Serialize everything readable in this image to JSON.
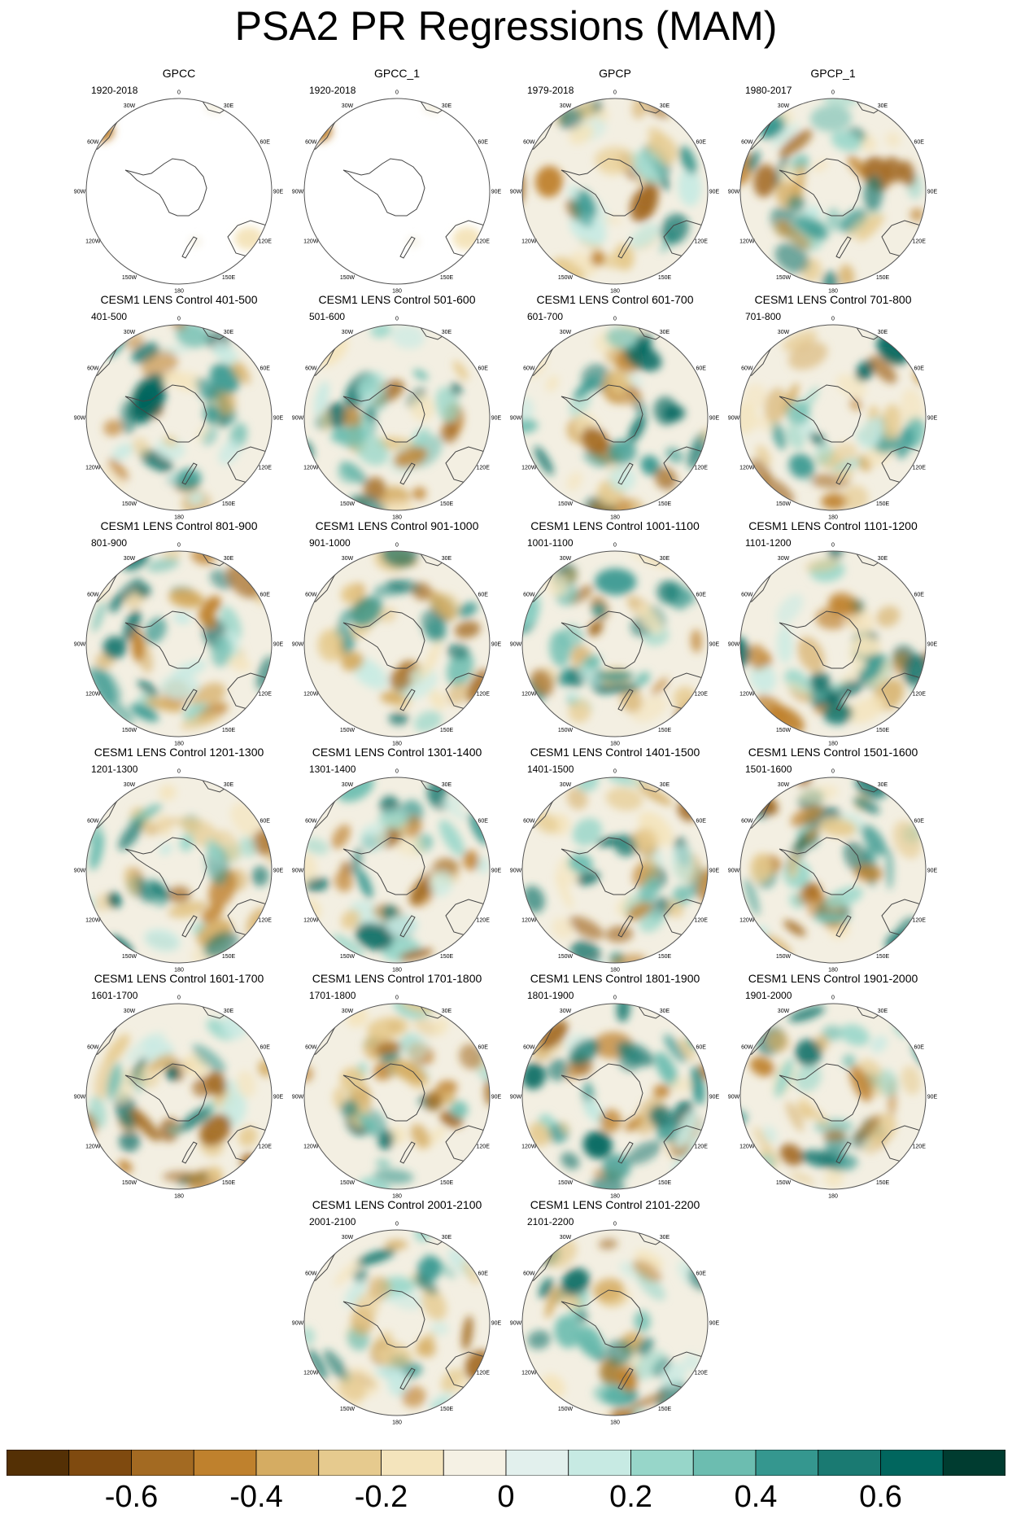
{
  "title": "PSA2 PR Regressions (MAM)",
  "panels": [
    {
      "id": "gpcc",
      "title": "GPCC",
      "period": "1920-2018",
      "coverage": "land"
    },
    {
      "id": "gpcc_1",
      "title": "GPCC_1",
      "period": "1920-2018",
      "coverage": "land"
    },
    {
      "id": "gpcp",
      "title": "GPCP",
      "period": "1979-2018",
      "coverage": "full"
    },
    {
      "id": "gpcp_1",
      "title": "GPCP_1",
      "period": "1980-2017",
      "coverage": "full"
    },
    {
      "id": "c401",
      "title": "CESM1 LENS Control 401-500",
      "period": "401-500",
      "coverage": "full"
    },
    {
      "id": "c501",
      "title": "CESM1 LENS Control 501-600",
      "period": "501-600",
      "coverage": "full"
    },
    {
      "id": "c601",
      "title": "CESM1 LENS Control 601-700",
      "period": "601-700",
      "coverage": "full"
    },
    {
      "id": "c701",
      "title": "CESM1 LENS Control 701-800",
      "period": "701-800",
      "coverage": "full"
    },
    {
      "id": "c801",
      "title": "CESM1 LENS Control 801-900",
      "period": "801-900",
      "coverage": "full"
    },
    {
      "id": "c901",
      "title": "CESM1 LENS Control 901-1000",
      "period": "901-1000",
      "coverage": "full"
    },
    {
      "id": "c1001",
      "title": "CESM1 LENS Control 1001-1100",
      "period": "1001-1100",
      "coverage": "full"
    },
    {
      "id": "c1101",
      "title": "CESM1 LENS Control 1101-1200",
      "period": "1101-1200",
      "coverage": "full"
    },
    {
      "id": "c1201",
      "title": "CESM1 LENS Control 1201-1300",
      "period": "1201-1300",
      "coverage": "full"
    },
    {
      "id": "c1301",
      "title": "CESM1 LENS Control 1301-1400",
      "period": "1301-1400",
      "coverage": "full"
    },
    {
      "id": "c1401",
      "title": "CESM1 LENS Control 1401-1500",
      "period": "1401-1500",
      "coverage": "full"
    },
    {
      "id": "c1501",
      "title": "CESM1 LENS Control 1501-1600",
      "period": "1501-1600",
      "coverage": "full"
    },
    {
      "id": "c1601",
      "title": "CESM1 LENS Control 1601-1700",
      "period": "1601-1700",
      "coverage": "full"
    },
    {
      "id": "c1701",
      "title": "CESM1 LENS Control 1701-1800",
      "period": "1701-1800",
      "coverage": "full"
    },
    {
      "id": "c1801",
      "title": "CESM1 LENS Control 1801-1900",
      "period": "1801-1900",
      "coverage": "full"
    },
    {
      "id": "c1901",
      "title": "CESM1 LENS Control 1901-2000",
      "period": "1901-2000",
      "coverage": "full"
    },
    {
      "id": "c2001",
      "title": "CESM1 LENS Control 2001-2100",
      "period": "2001-2100",
      "coverage": "full"
    },
    {
      "id": "c2101",
      "title": "CESM1 LENS Control 2101-2200",
      "period": "2101-2200",
      "coverage": "full"
    }
  ],
  "longitude_labels": [
    "0",
    "30E",
    "60E",
    "90E",
    "120E",
    "150E",
    "180",
    "150W",
    "120W",
    "90W",
    "60W",
    "30W"
  ],
  "colorbar": {
    "colors": [
      "#543005",
      "#7f4a0f",
      "#a36a22",
      "#bf812d",
      "#d5ac62",
      "#e6ca8e",
      "#f4e4bc",
      "#f5f1e4",
      "#e2f0ed",
      "#c7eae3",
      "#97d6c9",
      "#6cbdb0",
      "#35978f",
      "#1a7a72",
      "#01665e",
      "#003c30"
    ],
    "labels": [
      "-0.6",
      "-0.4",
      "-0.2",
      "0",
      "0.2",
      "0.4",
      "0.6"
    ]
  }
}
